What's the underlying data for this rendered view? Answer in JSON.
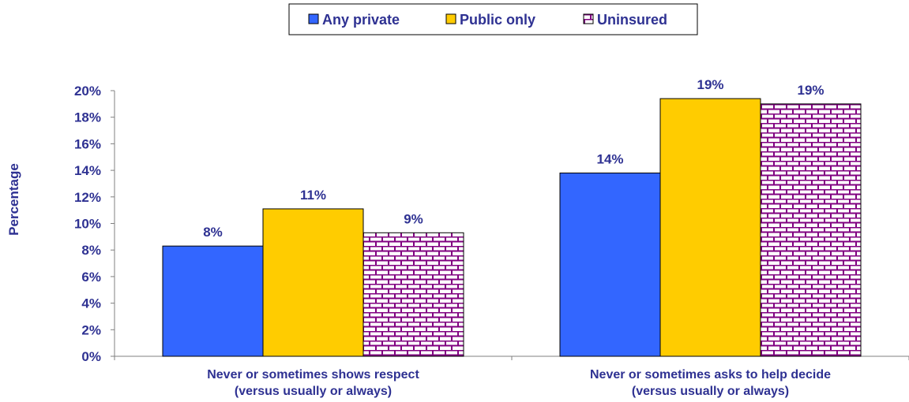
{
  "chart_data": {
    "type": "bar",
    "title": "",
    "xlabel": "",
    "ylabel": "Percentage",
    "ylim": [
      0,
      20
    ],
    "ytick_step": 2,
    "ytick_labels": [
      "0%",
      "2%",
      "4%",
      "6%",
      "8%",
      "10%",
      "12%",
      "14%",
      "16%",
      "18%",
      "20%"
    ],
    "grid": false,
    "legend_position": "top-center",
    "categories": [
      [
        "Never or sometimes shows respect",
        "(versus usually or always)"
      ],
      [
        "Never or sometimes asks to help decide",
        "(versus usually or always)"
      ]
    ],
    "series": [
      {
        "name": "Any private",
        "values": [
          8.3,
          13.8
        ],
        "labels": [
          "8%",
          "14%"
        ],
        "color": "#3366ff",
        "pattern": "solid"
      },
      {
        "name": "Public only",
        "values": [
          11.1,
          19.4
        ],
        "labels": [
          "11%",
          "19%"
        ],
        "color": "#ffcc00",
        "pattern": "solid"
      },
      {
        "name": "Uninsured",
        "values": [
          9.3,
          19.0
        ],
        "labels": [
          "9%",
          "19%"
        ],
        "color": "#800080",
        "pattern": "brick"
      }
    ]
  }
}
